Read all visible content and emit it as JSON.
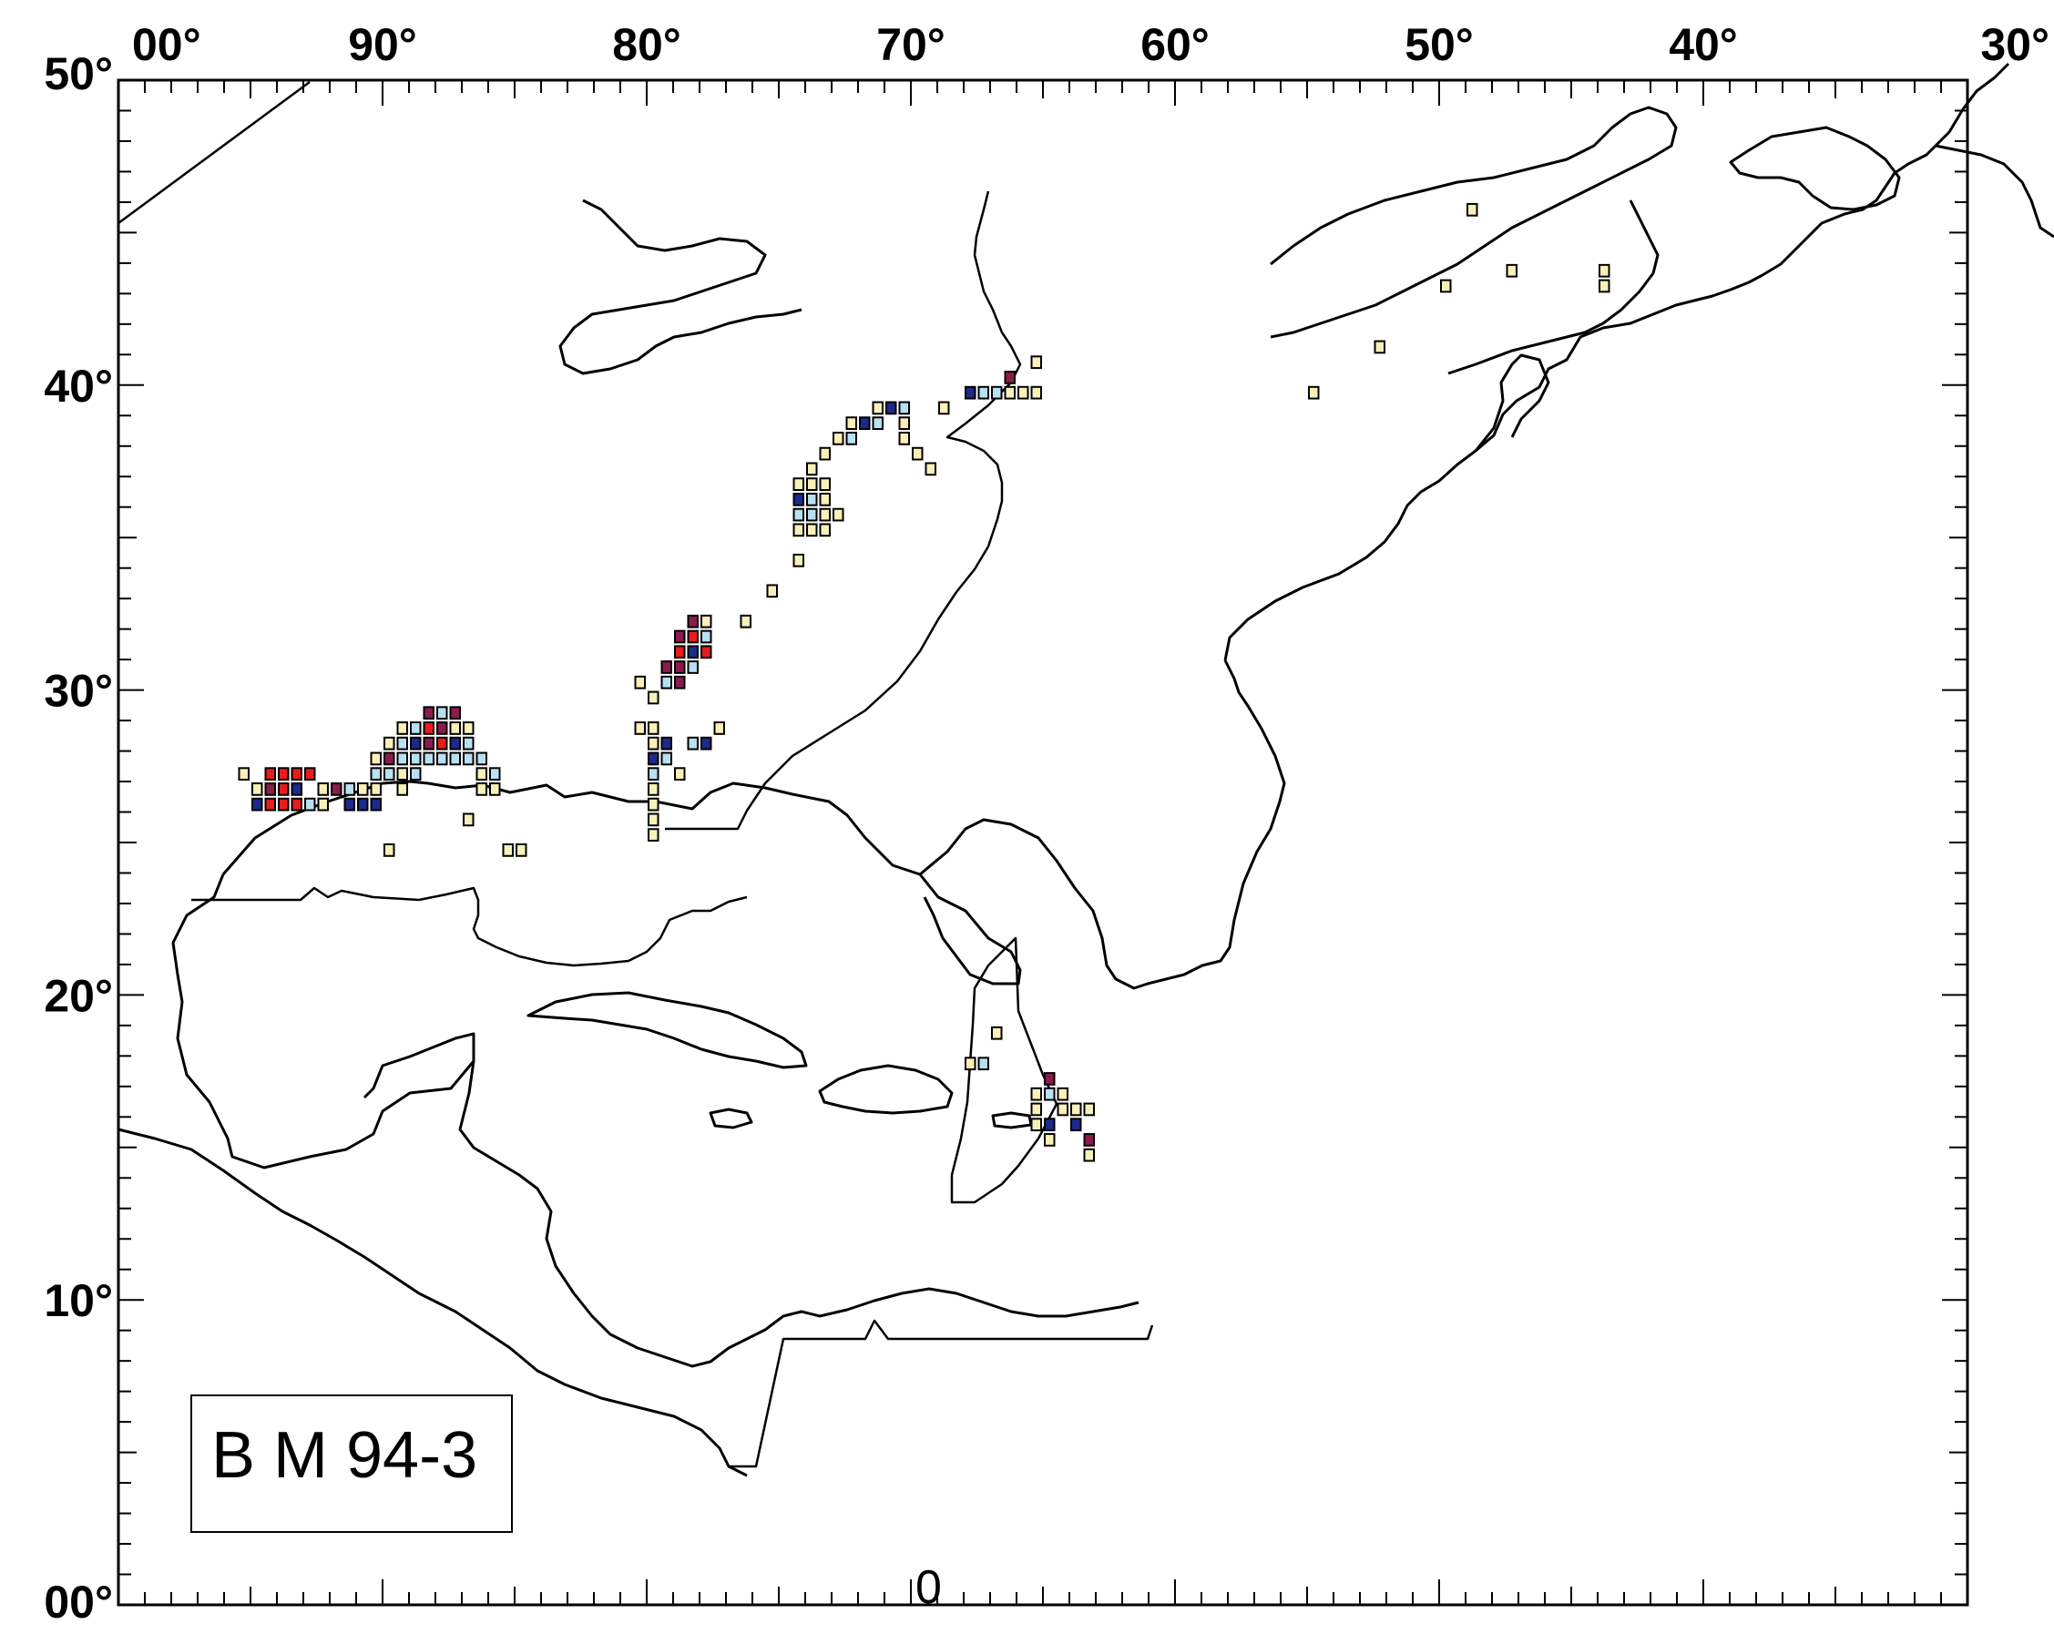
{
  "map": {
    "lon_range": [
      -100,
      -30
    ],
    "lat_range": [
      0,
      50
    ],
    "lon_tick_labels": [
      {
        "lon": -100,
        "text": "00°"
      },
      {
        "lon": -90,
        "text": "90°"
      },
      {
        "lon": -80,
        "text": "80°"
      },
      {
        "lon": -70,
        "text": "70°"
      },
      {
        "lon": -60,
        "text": "60°"
      },
      {
        "lon": -50,
        "text": "50°"
      },
      {
        "lon": -40,
        "text": "40°"
      },
      {
        "lon": -30,
        "text": "30°"
      }
    ],
    "lat_tick_labels": [
      {
        "lat": 50,
        "text": "50°"
      },
      {
        "lat": 40,
        "text": "40°"
      },
      {
        "lat": 30,
        "text": "30°"
      },
      {
        "lat": 20,
        "text": "20°"
      },
      {
        "lat": 10,
        "text": "10°"
      },
      {
        "lat": 0,
        "text": "00°"
      }
    ],
    "minor_tick_step_deg": 1,
    "label_box_text": "B M 94-3",
    "bottom_zero_text": "0",
    "colors": {
      "pale_yellow": "#f8f0b8",
      "light_blue": "#b8e0f0",
      "dark_blue": "#1c2a8c",
      "purple": "#8a1c4c",
      "red": "#e81c1c"
    }
  },
  "chart_data": {
    "type": "heatmap",
    "title": "",
    "xlabel": "",
    "ylabel": "",
    "xlim": [
      -100,
      -30
    ],
    "ylim": [
      0,
      50
    ],
    "cell_size_deg": 0.5,
    "grid": false,
    "cells": [
      {
        "lon": -95.25,
        "lat": 27.25,
        "c": "pale_yellow"
      },
      {
        "lon": -94.75,
        "lat": 26.75,
        "c": "pale_yellow"
      },
      {
        "lon": -94.75,
        "lat": 26.25,
        "c": "dark_blue"
      },
      {
        "lon": -94.25,
        "lat": 26.75,
        "c": "purple"
      },
      {
        "lon": -94.25,
        "lat": 26.25,
        "c": "red"
      },
      {
        "lon": -94.25,
        "lat": 27.25,
        "c": "red"
      },
      {
        "lon": -93.75,
        "lat": 26.75,
        "c": "red"
      },
      {
        "lon": -93.75,
        "lat": 26.25,
        "c": "red"
      },
      {
        "lon": -93.75,
        "lat": 27.25,
        "c": "red"
      },
      {
        "lon": -93.25,
        "lat": 26.75,
        "c": "dark_blue"
      },
      {
        "lon": -93.25,
        "lat": 26.25,
        "c": "red"
      },
      {
        "lon": -93.25,
        "lat": 27.25,
        "c": "red"
      },
      {
        "lon": -92.75,
        "lat": 26.25,
        "c": "light_blue"
      },
      {
        "lon": -92.75,
        "lat": 27.25,
        "c": "red"
      },
      {
        "lon": -92.25,
        "lat": 26.75,
        "c": "pale_yellow"
      },
      {
        "lon": -91.75,
        "lat": 26.75,
        "c": "purple"
      },
      {
        "lon": -91.25,
        "lat": 26.75,
        "c": "light_blue"
      },
      {
        "lon": -91.25,
        "lat": 26.25,
        "c": "dark_blue"
      },
      {
        "lon": -90.75,
        "lat": 26.25,
        "c": "dark_blue"
      },
      {
        "lon": -90.75,
        "lat": 26.75,
        "c": "pale_yellow"
      },
      {
        "lon": -90.25,
        "lat": 26.25,
        "c": "dark_blue"
      },
      {
        "lon": -90.25,
        "lat": 26.75,
        "c": "pale_yellow"
      },
      {
        "lon": -90.25,
        "lat": 27.25,
        "c": "light_blue"
      },
      {
        "lon": -90.25,
        "lat": 27.75,
        "c": "pale_yellow"
      },
      {
        "lon": -89.75,
        "lat": 27.25,
        "c": "light_blue"
      },
      {
        "lon": -89.75,
        "lat": 27.75,
        "c": "purple"
      },
      {
        "lon": -89.75,
        "lat": 28.25,
        "c": "pale_yellow"
      },
      {
        "lon": -89.25,
        "lat": 26.75,
        "c": "pale_yellow"
      },
      {
        "lon": -89.25,
        "lat": 27.25,
        "c": "pale_yellow"
      },
      {
        "lon": -89.25,
        "lat": 27.75,
        "c": "light_blue"
      },
      {
        "lon": -89.25,
        "lat": 28.25,
        "c": "light_blue"
      },
      {
        "lon": -89.25,
        "lat": 28.75,
        "c": "pale_yellow"
      },
      {
        "lon": -88.75,
        "lat": 27.25,
        "c": "light_blue"
      },
      {
        "lon": -88.75,
        "lat": 27.75,
        "c": "light_blue"
      },
      {
        "lon": -88.75,
        "lat": 28.25,
        "c": "dark_blue"
      },
      {
        "lon": -88.75,
        "lat": 28.75,
        "c": "light_blue"
      },
      {
        "lon": -88.25,
        "lat": 27.75,
        "c": "light_blue"
      },
      {
        "lon": -88.25,
        "lat": 28.25,
        "c": "purple"
      },
      {
        "lon": -88.25,
        "lat": 28.75,
        "c": "red"
      },
      {
        "lon": -88.25,
        "lat": 29.25,
        "c": "purple"
      },
      {
        "lon": -87.75,
        "lat": 27.75,
        "c": "light_blue"
      },
      {
        "lon": -87.75,
        "lat": 28.25,
        "c": "red"
      },
      {
        "lon": -87.75,
        "lat": 28.75,
        "c": "purple"
      },
      {
        "lon": -87.75,
        "lat": 29.25,
        "c": "light_blue"
      },
      {
        "lon": -87.25,
        "lat": 27.75,
        "c": "light_blue"
      },
      {
        "lon": -87.25,
        "lat": 28.25,
        "c": "dark_blue"
      },
      {
        "lon": -87.25,
        "lat": 28.75,
        "c": "pale_yellow"
      },
      {
        "lon": -87.25,
        "lat": 29.25,
        "c": "purple"
      },
      {
        "lon": -86.75,
        "lat": 27.75,
        "c": "light_blue"
      },
      {
        "lon": -86.75,
        "lat": 28.25,
        "c": "light_blue"
      },
      {
        "lon": -86.75,
        "lat": 28.75,
        "c": "pale_yellow"
      },
      {
        "lon": -86.25,
        "lat": 26.75,
        "c": "pale_yellow"
      },
      {
        "lon": -86.25,
        "lat": 27.25,
        "c": "pale_yellow"
      },
      {
        "lon": -86.25,
        "lat": 27.75,
        "c": "light_blue"
      },
      {
        "lon": -85.75,
        "lat": 26.75,
        "c": "pale_yellow"
      },
      {
        "lon": -85.75,
        "lat": 27.25,
        "c": "light_blue"
      },
      {
        "lon": -92.25,
        "lat": 26.25,
        "c": "pale_yellow"
      },
      {
        "lon": -86.75,
        "lat": 25.75,
        "c": "pale_yellow"
      },
      {
        "lon": -89.75,
        "lat": 24.75,
        "c": "pale_yellow"
      },
      {
        "lon": -85.25,
        "lat": 24.75,
        "c": "pale_yellow"
      },
      {
        "lon": -84.75,
        "lat": 24.75,
        "c": "pale_yellow"
      },
      {
        "lon": -80.25,
        "lat": 28.75,
        "c": "pale_yellow"
      },
      {
        "lon": -79.75,
        "lat": 28.75,
        "c": "pale_yellow"
      },
      {
        "lon": -79.75,
        "lat": 28.25,
        "c": "pale_yellow"
      },
      {
        "lon": -79.75,
        "lat": 27.75,
        "c": "dark_blue"
      },
      {
        "lon": -79.75,
        "lat": 27.25,
        "c": "light_blue"
      },
      {
        "lon": -79.75,
        "lat": 26.75,
        "c": "pale_yellow"
      },
      {
        "lon": -79.75,
        "lat": 26.25,
        "c": "pale_yellow"
      },
      {
        "lon": -79.75,
        "lat": 25.75,
        "c": "pale_yellow"
      },
      {
        "lon": -79.75,
        "lat": 25.25,
        "c": "pale_yellow"
      },
      {
        "lon": -79.25,
        "lat": 28.25,
        "c": "dark_blue"
      },
      {
        "lon": -79.25,
        "lat": 27.75,
        "c": "light_blue"
      },
      {
        "lon": -78.75,
        "lat": 27.25,
        "c": "pale_yellow"
      },
      {
        "lon": -78.25,
        "lat": 28.25,
        "c": "light_blue"
      },
      {
        "lon": -77.75,
        "lat": 28.25,
        "c": "dark_blue"
      },
      {
        "lon": -77.25,
        "lat": 28.75,
        "c": "pale_yellow"
      },
      {
        "lon": -80.25,
        "lat": 30.25,
        "c": "pale_yellow"
      },
      {
        "lon": -79.75,
        "lat": 29.75,
        "c": "pale_yellow"
      },
      {
        "lon": -79.25,
        "lat": 30.25,
        "c": "light_blue"
      },
      {
        "lon": -79.25,
        "lat": 30.75,
        "c": "purple"
      },
      {
        "lon": -78.75,
        "lat": 30.25,
        "c": "purple"
      },
      {
        "lon": -78.75,
        "lat": 30.75,
        "c": "purple"
      },
      {
        "lon": -78.75,
        "lat": 31.25,
        "c": "red"
      },
      {
        "lon": -78.75,
        "lat": 31.75,
        "c": "purple"
      },
      {
        "lon": -78.25,
        "lat": 30.75,
        "c": "light_blue"
      },
      {
        "lon": -78.25,
        "lat": 31.25,
        "c": "dark_blue"
      },
      {
        "lon": -78.25,
        "lat": 31.75,
        "c": "red"
      },
      {
        "lon": -78.25,
        "lat": 32.25,
        "c": "purple"
      },
      {
        "lon": -77.75,
        "lat": 31.25,
        "c": "red"
      },
      {
        "lon": -77.75,
        "lat": 31.75,
        "c": "light_blue"
      },
      {
        "lon": -77.75,
        "lat": 32.25,
        "c": "pale_yellow"
      },
      {
        "lon": -76.25,
        "lat": 32.25,
        "c": "pale_yellow"
      },
      {
        "lon": -75.25,
        "lat": 33.25,
        "c": "pale_yellow"
      },
      {
        "lon": -74.25,
        "lat": 34.25,
        "c": "pale_yellow"
      },
      {
        "lon": -74.25,
        "lat": 35.25,
        "c": "pale_yellow"
      },
      {
        "lon": -73.75,
        "lat": 35.25,
        "c": "pale_yellow"
      },
      {
        "lon": -73.25,
        "lat": 35.25,
        "c": "pale_yellow"
      },
      {
        "lon": -74.25,
        "lat": 35.75,
        "c": "light_blue"
      },
      {
        "lon": -73.75,
        "lat": 35.75,
        "c": "light_blue"
      },
      {
        "lon": -73.25,
        "lat": 35.75,
        "c": "pale_yellow"
      },
      {
        "lon": -72.75,
        "lat": 35.75,
        "c": "pale_yellow"
      },
      {
        "lon": -74.25,
        "lat": 36.25,
        "c": "dark_blue"
      },
      {
        "lon": -73.75,
        "lat": 36.25,
        "c": "light_blue"
      },
      {
        "lon": -73.25,
        "lat": 36.25,
        "c": "pale_yellow"
      },
      {
        "lon": -74.25,
        "lat": 36.75,
        "c": "pale_yellow"
      },
      {
        "lon": -73.75,
        "lat": 36.75,
        "c": "pale_yellow"
      },
      {
        "lon": -73.25,
        "lat": 36.75,
        "c": "pale_yellow"
      },
      {
        "lon": -73.75,
        "lat": 37.25,
        "c": "pale_yellow"
      },
      {
        "lon": -73.25,
        "lat": 37.75,
        "c": "pale_yellow"
      },
      {
        "lon": -72.75,
        "lat": 38.25,
        "c": "pale_yellow"
      },
      {
        "lon": -72.25,
        "lat": 38.25,
        "c": "light_blue"
      },
      {
        "lon": -72.25,
        "lat": 38.75,
        "c": "pale_yellow"
      },
      {
        "lon": -71.75,
        "lat": 38.75,
        "c": "dark_blue"
      },
      {
        "lon": -71.25,
        "lat": 38.75,
        "c": "light_blue"
      },
      {
        "lon": -71.25,
        "lat": 39.25,
        "c": "pale_yellow"
      },
      {
        "lon": -70.75,
        "lat": 39.25,
        "c": "dark_blue"
      },
      {
        "lon": -70.25,
        "lat": 39.25,
        "c": "light_blue"
      },
      {
        "lon": -70.25,
        "lat": 38.75,
        "c": "pale_yellow"
      },
      {
        "lon": -70.25,
        "lat": 38.25,
        "c": "pale_yellow"
      },
      {
        "lon": -69.75,
        "lat": 37.75,
        "c": "pale_yellow"
      },
      {
        "lon": -69.25,
        "lat": 37.25,
        "c": "pale_yellow"
      },
      {
        "lon": -68.75,
        "lat": 39.25,
        "c": "pale_yellow"
      },
      {
        "lon": -67.75,
        "lat": 39.75,
        "c": "dark_blue"
      },
      {
        "lon": -67.25,
        "lat": 39.75,
        "c": "light_blue"
      },
      {
        "lon": -66.75,
        "lat": 39.75,
        "c": "light_blue"
      },
      {
        "lon": -66.25,
        "lat": 39.75,
        "c": "pale_yellow"
      },
      {
        "lon": -66.25,
        "lat": 40.25,
        "c": "purple"
      },
      {
        "lon": -65.75,
        "lat": 39.75,
        "c": "pale_yellow"
      },
      {
        "lon": -65.25,
        "lat": 39.75,
        "c": "pale_yellow"
      },
      {
        "lon": -65.25,
        "lat": 40.75,
        "c": "pale_yellow"
      },
      {
        "lon": -54.75,
        "lat": 39.75,
        "c": "pale_yellow"
      },
      {
        "lon": -52.25,
        "lat": 41.25,
        "c": "pale_yellow"
      },
      {
        "lon": -49.75,
        "lat": 43.25,
        "c": "pale_yellow"
      },
      {
        "lon": -48.75,
        "lat": 45.75,
        "c": "pale_yellow"
      },
      {
        "lon": -47.25,
        "lat": 43.75,
        "c": "pale_yellow"
      },
      {
        "lon": -43.75,
        "lat": 43.75,
        "c": "pale_yellow"
      },
      {
        "lon": -43.75,
        "lat": 43.25,
        "c": "pale_yellow"
      },
      {
        "lon": -66.75,
        "lat": 18.75,
        "c": "pale_yellow"
      },
      {
        "lon": -67.75,
        "lat": 17.75,
        "c": "pale_yellow"
      },
      {
        "lon": -67.25,
        "lat": 17.75,
        "c": "light_blue"
      },
      {
        "lon": -64.75,
        "lat": 17.25,
        "c": "purple"
      },
      {
        "lon": -65.25,
        "lat": 16.75,
        "c": "pale_yellow"
      },
      {
        "lon": -64.75,
        "lat": 16.75,
        "c": "light_blue"
      },
      {
        "lon": -64.25,
        "lat": 16.75,
        "c": "pale_yellow"
      },
      {
        "lon": -65.25,
        "lat": 16.25,
        "c": "pale_yellow"
      },
      {
        "lon": -64.25,
        "lat": 16.25,
        "c": "pale_yellow"
      },
      {
        "lon": -63.75,
        "lat": 16.25,
        "c": "pale_yellow"
      },
      {
        "lon": -63.25,
        "lat": 16.25,
        "c": "pale_yellow"
      },
      {
        "lon": -65.25,
        "lat": 15.75,
        "c": "pale_yellow"
      },
      {
        "lon": -64.75,
        "lat": 15.75,
        "c": "dark_blue"
      },
      {
        "lon": -63.75,
        "lat": 15.75,
        "c": "dark_blue"
      },
      {
        "lon": -64.75,
        "lat": 15.25,
        "c": "pale_yellow"
      },
      {
        "lon": -63.25,
        "lat": 15.25,
        "c": "purple"
      },
      {
        "lon": -63.25,
        "lat": 14.75,
        "c": "pale_yellow"
      }
    ]
  }
}
